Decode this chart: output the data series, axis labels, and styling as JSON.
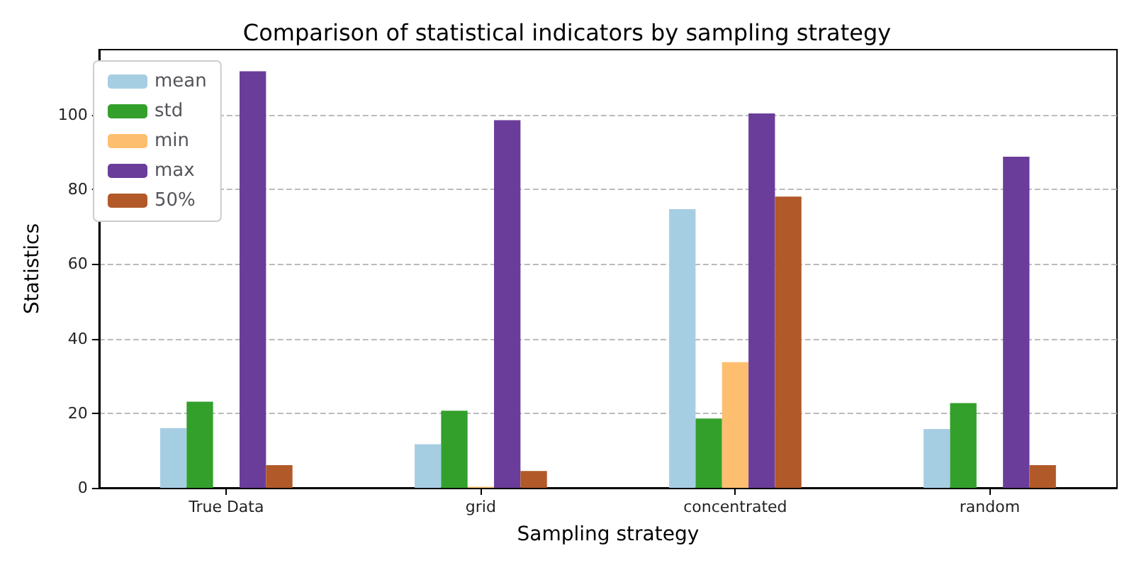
{
  "chart_data": {
    "type": "bar",
    "title": "Comparison of statistical indicators by sampling strategy",
    "xlabel": "Sampling strategy",
    "ylabel": "Statistics",
    "categories": [
      "True Data",
      "grid",
      "concentrated",
      "random"
    ],
    "series": [
      {
        "name": "mean",
        "color": "#a6cee3",
        "values": [
          16.0,
          11.7,
          74.7,
          15.8
        ]
      },
      {
        "name": "std",
        "color": "#33a02c",
        "values": [
          23.1,
          20.7,
          18.6,
          22.7
        ]
      },
      {
        "name": "min",
        "color": "#fdbf6f",
        "values": [
          null,
          0.3,
          33.7,
          null
        ]
      },
      {
        "name": "max",
        "color": "#6a3d9a",
        "values": [
          111.7,
          98.6,
          100.4,
          88.8
        ]
      },
      {
        "name": "50%",
        "color": "#b15928",
        "values": [
          6.1,
          4.5,
          78.1,
          6.1
        ]
      }
    ],
    "ylim": [
      0,
      117.5
    ],
    "yticks": [
      0,
      20,
      40,
      60,
      80,
      100
    ],
    "grid": "y",
    "legend": "top left"
  }
}
